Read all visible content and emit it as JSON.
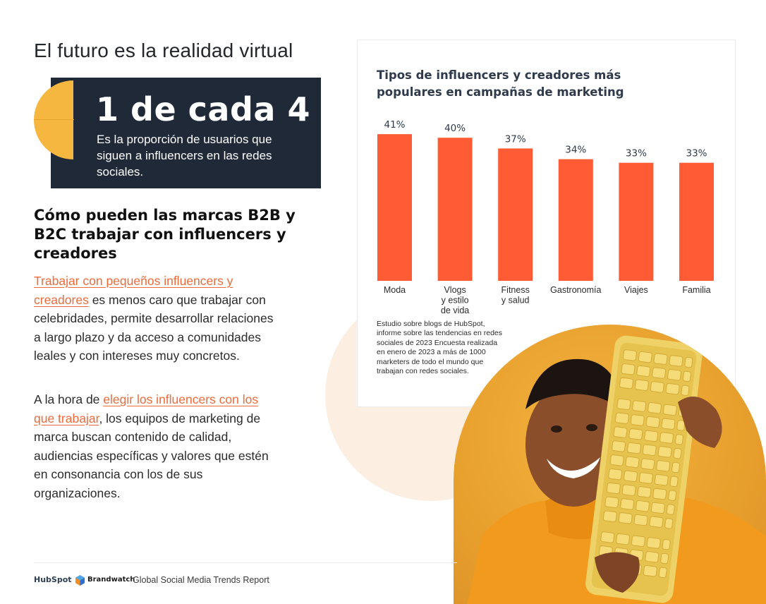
{
  "page": {
    "title": "El futuro es la realidad virtual"
  },
  "stat": {
    "headline": "1 de cada 4",
    "caption": "Es la proporción de usuarios que siguen a influencers en las redes sociales."
  },
  "article": {
    "heading": "Cómo pueden las marcas B2B y B2C trabajar con influencers y creadores",
    "p1_link": "Trabajar con pequeños influencers y creadores",
    "p1_rest": " es menos caro que trabajar con celebridades, permite desarrollar relaciones a largo plazo y da acceso a comunidades leales y con intereses muy concretos.",
    "p2_start": "A la hora de ",
    "p2_link": "elegir los influencers con los que trabajar",
    "p2_rest": ", los equipos de marketing de marca buscan contenido de calidad, audiencias específicas y valores que estén en consonancia con los de sus organizaciones."
  },
  "chart_data": {
    "type": "bar",
    "title": "Tipos de influencers y creadores más populares en campañas de marketing",
    "categories": [
      [
        "Moda"
      ],
      [
        "Vlogs",
        "y estilo",
        "de vida"
      ],
      [
        "Fitness",
        "y salud"
      ],
      [
        "Gastronomía"
      ],
      [
        "Viajes"
      ],
      [
        "Familia"
      ]
    ],
    "values": [
      41,
      40,
      37,
      34,
      33,
      33
    ],
    "value_labels": [
      "41%",
      "40%",
      "37%",
      "34%",
      "33%",
      "33%"
    ],
    "unit": "%",
    "bar_color": "#ff5c35",
    "grid": false
  },
  "chart_source": "Estudio sobre blogs de HubSpot, informe sobre las tendencias en redes sociales de 2023 Encuesta realizada en enero de 2023 a más de 1000 marketers de todo el mundo que trabajan con redes sociales.",
  "footer": {
    "hubspot": "HubSpot",
    "brandwatch": "Brandwatch",
    "report": "Global Social Media Trends Report"
  },
  "colors": {
    "accent": "#ff5c35",
    "dark_box": "#1f2937",
    "yellow": "#f6b740",
    "link": "#ef6a3a"
  }
}
